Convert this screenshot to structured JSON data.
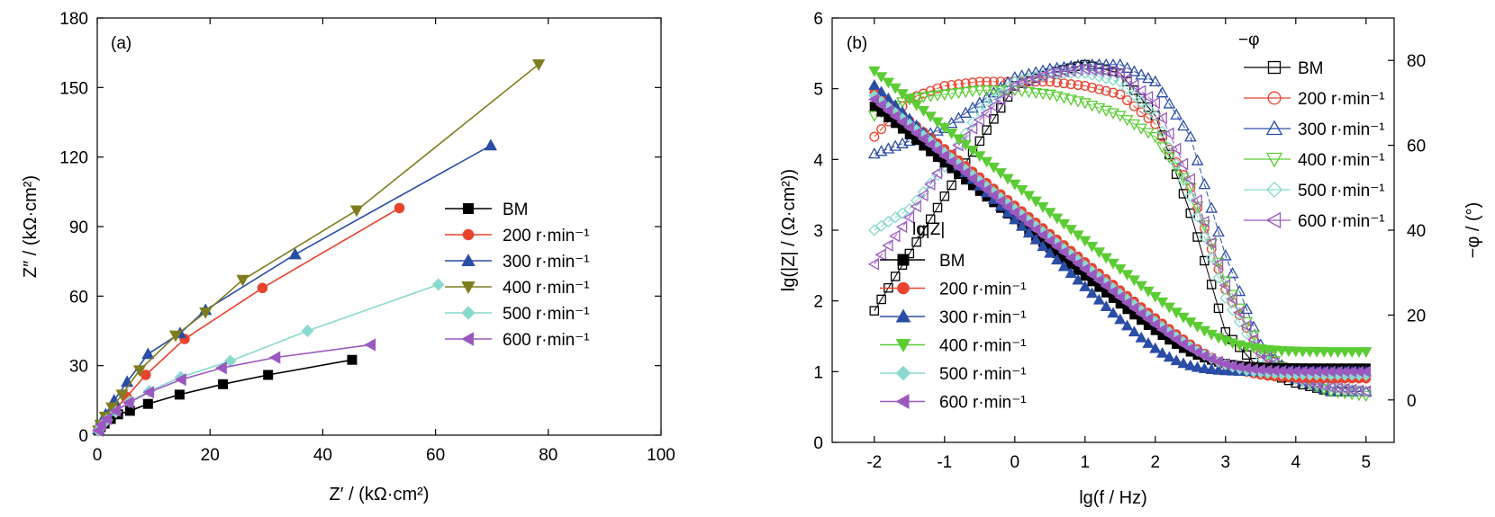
{
  "colors": {
    "BM": "#000000",
    "200": "#e8432d",
    "300": "#2a4da6",
    "400": "#5ccc34",
    "500": "#8ad9cf",
    "600": "#9b59c0",
    "400a": "#7f7c1e"
  },
  "chart_data": [
    {
      "type": "line",
      "panel_label": "(a)",
      "xlabel": "Z′ / (kΩ·cm²)",
      "ylabel": "Z″ / (kΩ·cm²)",
      "xlim": [
        0,
        100
      ],
      "ylim": [
        0,
        180
      ],
      "xticks": [
        "0",
        "20",
        "40",
        "60",
        "80",
        "100"
      ],
      "yticks": [
        "0",
        "30",
        "60",
        "90",
        "120",
        "150",
        "180"
      ],
      "legend": {
        "placement": "right-center",
        "entries": [
          "BM",
          "200 r·min⁻¹",
          "300 r·min⁻¹",
          "400 r·min⁻¹",
          "500 r·min⁻¹",
          "600 r·min⁻¹"
        ]
      },
      "series": [
        {
          "name": "BM",
          "marker": "square",
          "color_key": "BM",
          "x": [
            0.2,
            0.6,
            1.3,
            2.4,
            3.7,
            5.8,
            9.0,
            14.6,
            22.3,
            30.3,
            45.2
          ],
          "y": [
            2.0,
            3.5,
            5.0,
            7.0,
            9.0,
            10.5,
            13.5,
            17.5,
            22.0,
            26.0,
            32.5
          ]
        },
        {
          "name": "200 r·min⁻¹",
          "marker": "circle",
          "color_key": "200",
          "x": [
            0.2,
            0.7,
            1.7,
            3.1,
            5.2,
            8.6,
            15.5,
            29.3,
            53.6
          ],
          "y": [
            2.0,
            4.0,
            7.0,
            11.0,
            16.5,
            26.0,
            41.5,
            63.5,
            98.0
          ]
        },
        {
          "name": "300 r·min⁻¹",
          "marker": "triangle-up",
          "color_key": "300",
          "x": [
            0.2,
            0.6,
            1.5,
            3.0,
            5.3,
            9.0,
            14.7,
            19.2,
            35.1,
            69.8
          ],
          "y": [
            2.5,
            5.0,
            9.0,
            15.0,
            23.0,
            35.0,
            44.0,
            54.0,
            78.0,
            125.0
          ]
        },
        {
          "name": "400 r·min⁻¹",
          "marker": "triangle-down",
          "color_key": "400a",
          "x": [
            0.2,
            0.6,
            1.4,
            2.6,
            4.4,
            7.5,
            13.9,
            19.2,
            25.8,
            46.0,
            78.3
          ],
          "y": [
            2.0,
            4.5,
            8.0,
            12.0,
            17.5,
            28.0,
            43.0,
            53.0,
            67.0,
            97.0,
            160.0
          ]
        },
        {
          "name": "500 r·min⁻¹",
          "marker": "diamond",
          "color_key": "500",
          "x": [
            0.2,
            0.7,
            1.7,
            3.3,
            5.7,
            9.2,
            14.8,
            23.6,
            37.3,
            60.5
          ],
          "y": [
            2.0,
            4.0,
            6.5,
            10.0,
            14.5,
            19.0,
            25.0,
            32.0,
            45.0,
            65.0
          ]
        },
        {
          "name": "600 r·min⁻¹",
          "marker": "triangle-left",
          "color_key": "600",
          "x": [
            0.2,
            0.7,
            1.7,
            3.3,
            5.6,
            9.2,
            14.9,
            22.1,
            31.6,
            48.5
          ],
          "y": [
            2.0,
            4.5,
            7.0,
            10.5,
            14.0,
            18.5,
            24.0,
            29.0,
            33.5,
            39.0
          ]
        }
      ]
    },
    {
      "type": "line",
      "panel_label": "(b)",
      "xlabel": "lg(f / Hz)",
      "ylabel": "lg(|Z| / (Ω·cm²))",
      "y2label": "−φ / (°)",
      "xlim": [
        -2.6,
        5.4
      ],
      "ylim": [
        0,
        6
      ],
      "y2lim": [
        -10,
        90
      ],
      "xticks": [
        "-2",
        "-1",
        "0",
        "1",
        "2",
        "3",
        "4",
        "5"
      ],
      "yticks": [
        "0",
        "1",
        "2",
        "3",
        "4",
        "5",
        "6"
      ],
      "y2ticks": [
        "0",
        "20",
        "40",
        "60",
        "80"
      ],
      "legend_z": {
        "title": "lg|Z|",
        "placement": "left-bottom",
        "entries": [
          "BM",
          "200 r·min⁻¹",
          "300 r·min⁻¹",
          "400 r·min⁻¹",
          "500 r·min⁻¹",
          "600 r·min⁻¹"
        ]
      },
      "legend_phi": {
        "title": "−φ",
        "placement": "right-top",
        "entries": [
          "BM",
          "200 r·min⁻¹",
          "300 r·min⁻¹",
          "400 r·min⁻¹",
          "500 r·min⁻¹",
          "600 r·min⁻¹"
        ]
      },
      "series_z": [
        {
          "name": "BM",
          "color_key": "BM",
          "marker": "square",
          "a": 4.75,
          "b": 0.05,
          "r": 0.8,
          "rf": 1.05
        },
        {
          "name": "200 r·min⁻¹",
          "color_key": "200",
          "marker": "circle",
          "a": 4.95,
          "b": 0.2,
          "r": 0.8,
          "rf": 0.9
        },
        {
          "name": "300 r·min⁻¹",
          "color_key": "300",
          "marker": "triangle-up",
          "a": 5.05,
          "b": -0.05,
          "r": 0.95,
          "rf": 1.0
        },
        {
          "name": "400 r·min⁻¹",
          "color_key": "400",
          "marker": "triangle-down",
          "a": 5.25,
          "b": 0.4,
          "r": 0.8,
          "rf": 1.28
        },
        {
          "name": "500 r·min⁻¹",
          "color_key": "500",
          "marker": "diamond",
          "a": 4.9,
          "b": 0.15,
          "r": 0.8,
          "rf": 0.95
        },
        {
          "name": "600 r·min⁻¹",
          "color_key": "600",
          "marker": "triangle-left",
          "a": 4.85,
          "b": 0.1,
          "r": 0.8,
          "rf": 1.0
        }
      ],
      "series_phi": [
        {
          "name": "BM",
          "color_key": "BM",
          "marker": "square-open",
          "x": [
            -2,
            -1,
            0,
            0.5,
            1,
            1.5,
            2,
            2.5,
            3,
            3.5,
            4,
            4.5,
            5
          ],
          "y": [
            21,
            48,
            74,
            77,
            79,
            77,
            67,
            44,
            16,
            7,
            4,
            2,
            2
          ]
        },
        {
          "name": "200 r·min⁻¹",
          "color_key": "200",
          "marker": "circle-open",
          "x": [
            -2,
            -1.5,
            -1,
            -0.5,
            0,
            0.5,
            1,
            1.5,
            2,
            2.5,
            3,
            3.5,
            4,
            4.5,
            5
          ],
          "y": [
            62,
            71,
            74,
            75,
            75,
            75,
            74,
            72,
            65,
            50,
            26,
            11,
            6,
            3,
            2
          ]
        },
        {
          "name": "300 r·min⁻¹",
          "color_key": "300",
          "marker": "triangle-open",
          "x": [
            -2,
            -1,
            0,
            0.5,
            1,
            1.5,
            2,
            2.5,
            3,
            3.5,
            4,
            4.5,
            5
          ],
          "y": [
            58,
            64,
            76,
            78,
            79,
            79,
            75,
            62,
            34,
            13,
            5,
            2,
            2
          ]
        },
        {
          "name": "400 r·min⁻¹",
          "color_key": "400",
          "marker": "triangle-down-open",
          "x": [
            -2,
            -1.5,
            -1,
            -0.5,
            0,
            0.5,
            1,
            1.5,
            2,
            2.5,
            3,
            3.5,
            4,
            4.5,
            5
          ],
          "y": [
            67,
            71,
            72,
            73,
            73,
            72,
            70,
            67,
            62,
            50,
            28,
            12,
            5,
            2,
            1
          ]
        },
        {
          "name": "500 r·min⁻¹",
          "color_key": "500",
          "marker": "diamond-open",
          "x": [
            -2,
            -1.5,
            -1,
            -0.5,
            0,
            0.5,
            1,
            1.5,
            2,
            2.5,
            3,
            3.5,
            4,
            4.5,
            5
          ],
          "y": [
            40,
            45,
            55,
            68,
            75,
            77,
            77,
            75,
            67,
            48,
            24,
            10,
            5,
            3,
            2
          ]
        },
        {
          "name": "600 r·min⁻¹",
          "color_key": "600",
          "marker": "triangle-left-open",
          "x": [
            -2,
            -1.5,
            -1,
            -0.5,
            0,
            0.5,
            1,
            1.5,
            2,
            2.5,
            3,
            3.5,
            4,
            4.5,
            5
          ],
          "y": [
            32,
            43,
            56,
            66,
            74,
            77,
            78,
            77,
            70,
            52,
            27,
            11,
            5,
            3,
            2
          ]
        }
      ]
    }
  ]
}
